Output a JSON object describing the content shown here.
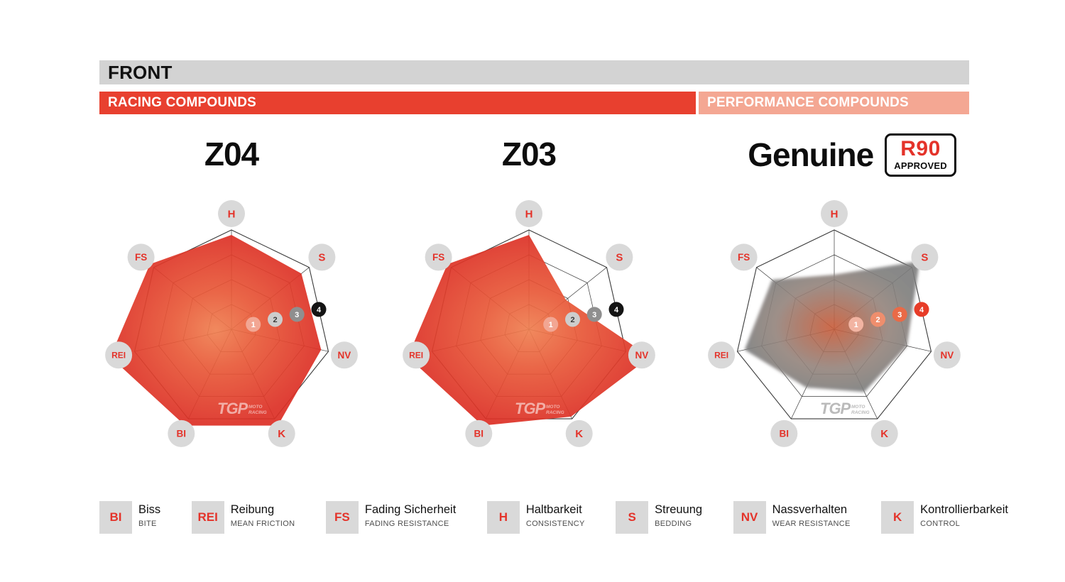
{
  "header": {
    "title": "FRONT"
  },
  "bars": {
    "racing": "RACING COMPOUNDS",
    "performance": "PERFORMANCE COMPOUNDS"
  },
  "badge": {
    "line1": "R90",
    "line2": "APPROVED"
  },
  "colors": {
    "racing_red": "#e8402f",
    "performance_salmon": "#f4a793",
    "label_red": "#e4332a",
    "label_circle_gray": "#d9d9d9",
    "header_gray": "#d3d3d3",
    "web_line": "#3a3a3a"
  },
  "chart_data": [
    {
      "type": "radar",
      "title": "Z04",
      "axes": [
        "H",
        "S",
        "NV",
        "K",
        "BI",
        "REI",
        "FS"
      ],
      "max": 4,
      "rings": 4,
      "values": [
        3.8,
        3.6,
        3.7,
        4.3,
        4.3,
        5.0,
        4.2
      ],
      "fill_stops": [
        [
          "0%",
          "#ef7f50"
        ],
        [
          "40%",
          "#e85938"
        ],
        [
          "100%",
          "#dc2f25"
        ]
      ],
      "fill_opacity": 0.92,
      "blur": 0,
      "scale_markers": [
        {
          "label": "1",
          "bg": "#f2a693",
          "fg": "#ffffff"
        },
        {
          "label": "2",
          "bg": "#cdcdcd",
          "fg": "#3a3a3a"
        },
        {
          "label": "3",
          "bg": "#8f8f8f",
          "fg": "#ffffff"
        },
        {
          "label": "4",
          "bg": "#141414",
          "fg": "#ffffff"
        }
      ],
      "watermark": {
        "text": "TGP",
        "sub1": "MOTO",
        "sub2": "RACING",
        "color": "rgba(255,255,255,0.55)"
      }
    },
    {
      "type": "radar",
      "title": "Z03",
      "axes": [
        "H",
        "S",
        "NV",
        "K",
        "BI",
        "REI",
        "FS"
      ],
      "max": 4,
      "rings": 4,
      "values": [
        3.8,
        1.9,
        5.0,
        3.9,
        4.3,
        5.0,
        4.2
      ],
      "fill_stops": [
        [
          "0%",
          "#ef7f50"
        ],
        [
          "40%",
          "#e85938"
        ],
        [
          "100%",
          "#dc2f25"
        ]
      ],
      "fill_opacity": 0.92,
      "blur": 0,
      "scale_markers": [
        {
          "label": "1",
          "bg": "#f2a693",
          "fg": "#ffffff"
        },
        {
          "label": "2",
          "bg": "#cdcdcd",
          "fg": "#3a3a3a"
        },
        {
          "label": "3",
          "bg": "#8f8f8f",
          "fg": "#ffffff"
        },
        {
          "label": "4",
          "bg": "#141414",
          "fg": "#ffffff"
        }
      ],
      "watermark": {
        "text": "TGP",
        "sub1": "MOTO",
        "sub2": "RACING",
        "color": "rgba(255,255,255,0.55)"
      }
    },
    {
      "type": "radar",
      "title": "Genuine",
      "axes": [
        "H",
        "S",
        "NV",
        "K",
        "BI",
        "REI",
        "FS"
      ],
      "max": 4,
      "rings": 4,
      "values": [
        2.2,
        4.4,
        3.0,
        2.8,
        2.6,
        3.7,
        3.2
      ],
      "fill_stops": [
        [
          "0%",
          "#c85a38"
        ],
        [
          "35%",
          "#a9705c"
        ],
        [
          "65%",
          "#93837c"
        ],
        [
          "100%",
          "#7d7d7d"
        ]
      ],
      "fill_opacity": 0.9,
      "blur": 2.2,
      "scale_markers": [
        {
          "label": "1",
          "bg": "#f2b4a2",
          "fg": "#ffffff"
        },
        {
          "label": "2",
          "bg": "#ef8e6d",
          "fg": "#ffffff"
        },
        {
          "label": "3",
          "bg": "#e96a47",
          "fg": "#ffffff"
        },
        {
          "label": "4",
          "bg": "#e73c28",
          "fg": "#ffffff"
        }
      ],
      "watermark": {
        "text": "TGP",
        "sub1": "MOTO",
        "sub2": "RACING",
        "color": "rgba(140,140,140,0.6)"
      }
    }
  ],
  "legend": [
    {
      "abbr": "BI",
      "term": "Biss",
      "translation": "BITE"
    },
    {
      "abbr": "REI",
      "term": "Reibung",
      "translation": "MEAN FRICTION"
    },
    {
      "abbr": "FS",
      "term": "Fading Sicherheit",
      "translation": "FADING RESISTANCE"
    },
    {
      "abbr": "H",
      "term": "Haltbarkeit",
      "translation": "CONSISTENCY"
    },
    {
      "abbr": "S",
      "term": "Streuung",
      "translation": "BEDDING"
    },
    {
      "abbr": "NV",
      "term": "Nassverhalten",
      "translation": "WEAR RESISTANCE"
    },
    {
      "abbr": "K",
      "term": "Kontrollierbarkeit",
      "translation": "CONTROL"
    }
  ]
}
